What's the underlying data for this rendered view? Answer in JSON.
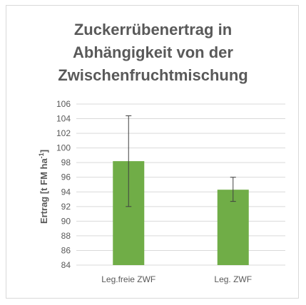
{
  "chart_data": {
    "type": "bar",
    "title_lines": [
      "Zuckerrübenertrag in",
      "Abhängigkeit von der",
      "Zwischenfruchtmischung"
    ],
    "ylabel": "Ertrag [t FM ha",
    "ylabel_superscript": "-1",
    "ylabel_close": "]",
    "xlabel": "",
    "categories": [
      "Leg.freie ZWF",
      "Leg. ZWF"
    ],
    "values": [
      98.2,
      94.3
    ],
    "error_low": [
      92.0,
      92.7
    ],
    "error_high": [
      104.4,
      96.0
    ],
    "ylim": [
      84,
      106
    ],
    "yticks": [
      84,
      86,
      88,
      90,
      92,
      94,
      96,
      98,
      100,
      102,
      104,
      106
    ],
    "grid": true,
    "legend": "none",
    "bar_color": "#70ad47",
    "grid_color": "#d9d9d9",
    "error_bar_color": "#404040"
  }
}
